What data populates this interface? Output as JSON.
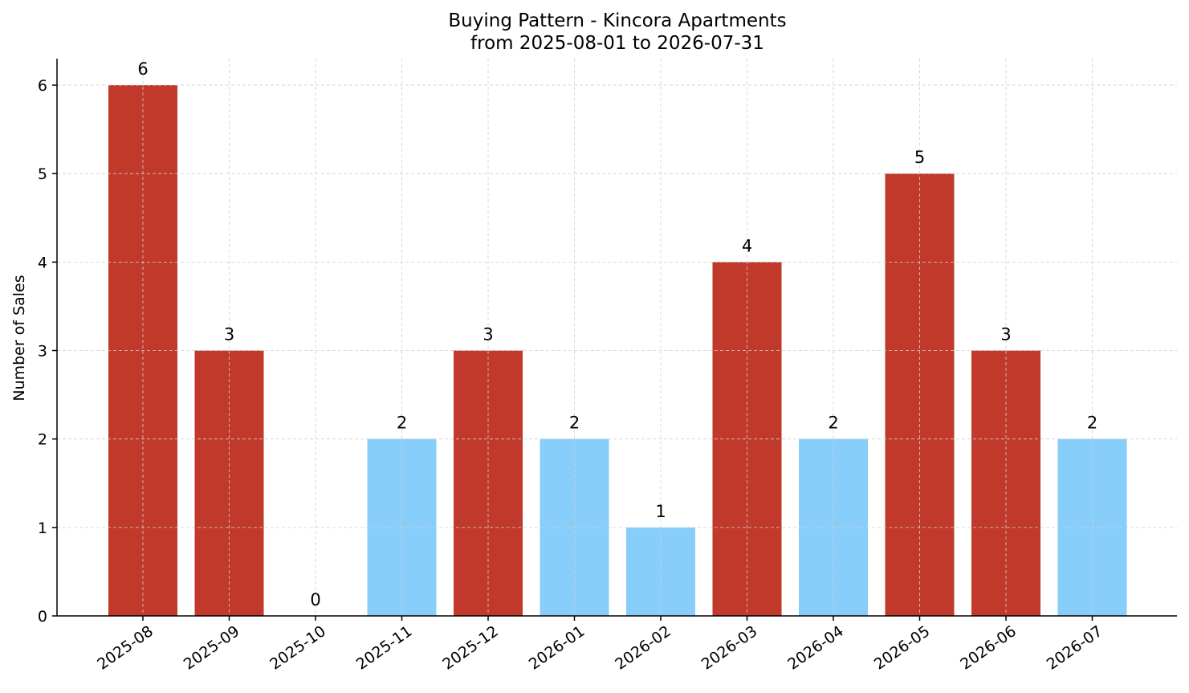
{
  "chart_data": {
    "type": "bar",
    "title": "Buying Pattern - Kincora Apartments",
    "subtitle": "from 2025-08-01 to 2026-07-31",
    "xlabel": "",
    "ylabel": "Number of Sales",
    "categories": [
      "2025-08",
      "2025-09",
      "2025-10",
      "2025-11",
      "2025-12",
      "2026-01",
      "2026-02",
      "2026-03",
      "2026-04",
      "2026-05",
      "2026-06",
      "2026-07"
    ],
    "values": [
      6,
      3,
      0,
      2,
      3,
      2,
      1,
      4,
      2,
      5,
      3,
      2
    ],
    "bar_colors": [
      "#c0392b",
      "#c0392b",
      "#c0392b",
      "#87cefa",
      "#c0392b",
      "#87cefa",
      "#87cefa",
      "#c0392b",
      "#87cefa",
      "#c0392b",
      "#c0392b",
      "#87cefa"
    ],
    "data_labels": [
      "6",
      "3",
      "0",
      "2",
      "3",
      "2",
      "1",
      "4",
      "2",
      "5",
      "3",
      "2"
    ],
    "yticks": [
      0,
      1,
      2,
      3,
      4,
      5,
      6
    ],
    "ylim": [
      0,
      6.3
    ],
    "grid": true
  }
}
